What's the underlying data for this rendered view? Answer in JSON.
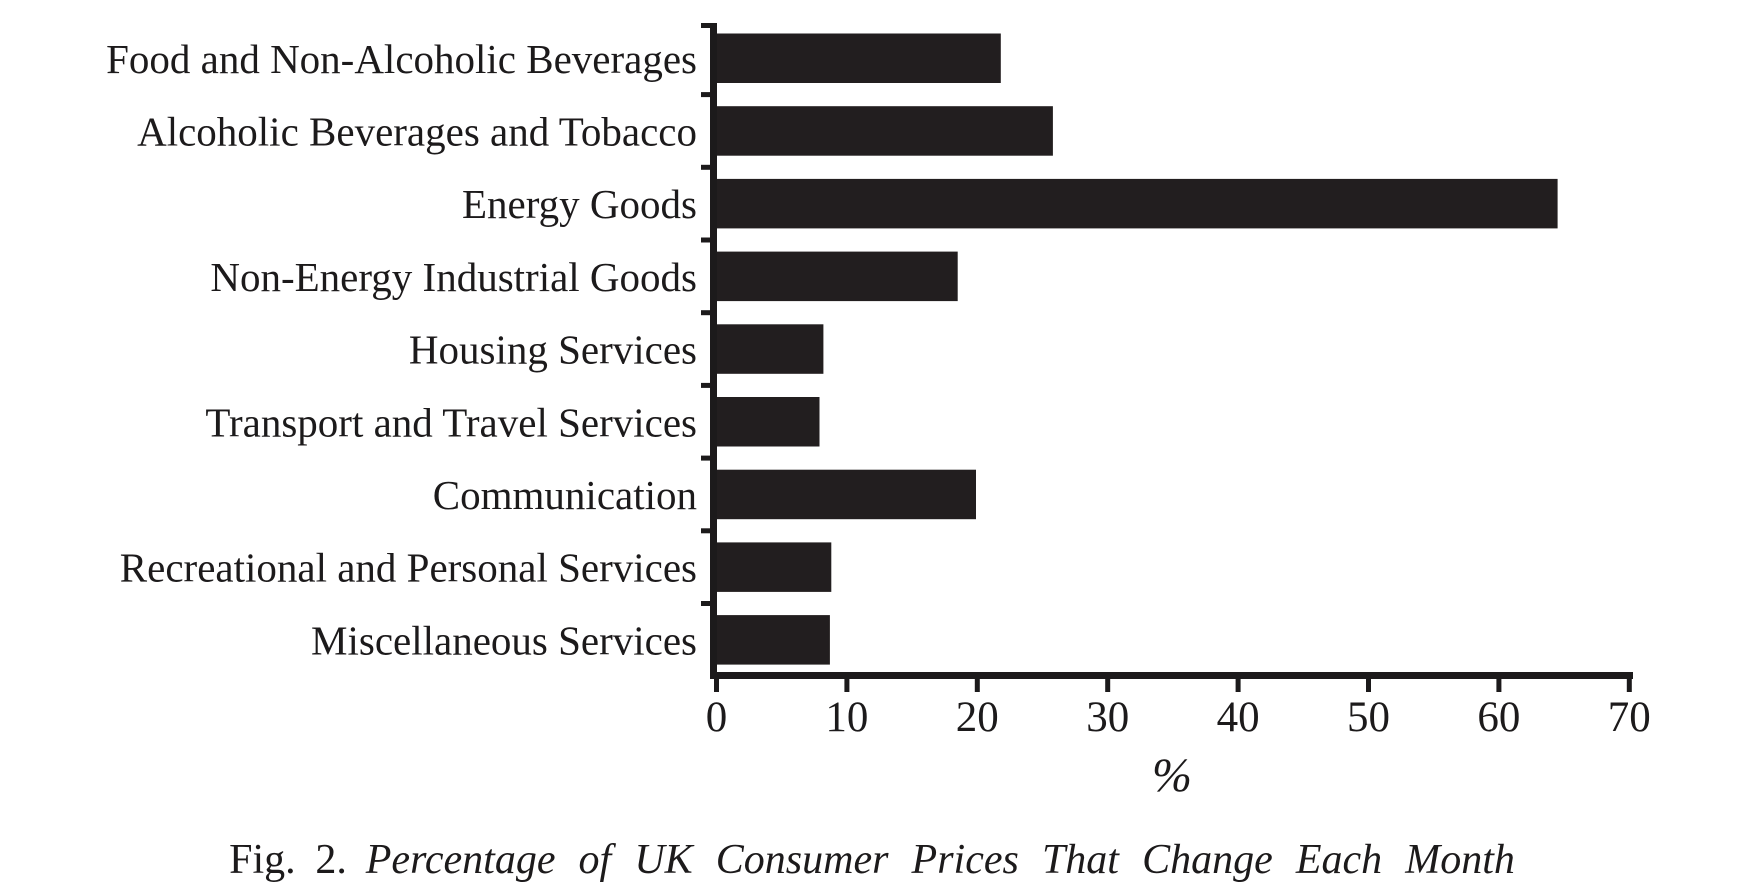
{
  "figure": {
    "caption_prefix": "Fig. 2.",
    "caption_title": "Percentage of UK Consumer Prices That Change Each Month"
  },
  "chart_data": {
    "type": "bar",
    "orientation": "horizontal",
    "title": "",
    "xlabel": "%",
    "ylabel": "",
    "xlim": [
      0,
      70
    ],
    "xticks": [
      0,
      10,
      20,
      30,
      40,
      50,
      60,
      70
    ],
    "grid": false,
    "legend": "none",
    "bar_color": "#221e1f",
    "axis_color": "#1c1a1b",
    "categories": [
      "Food and Non-Alcoholic Beverages",
      "Alcoholic Beverages and Tobacco",
      "Energy Goods",
      "Non-Energy Industrial Goods",
      "Housing Services",
      "Transport and Travel Services",
      "Communication",
      "Recreational and Personal Services",
      "Miscellaneous Services"
    ],
    "values": [
      21.8,
      25.8,
      64.5,
      18.5,
      8.2,
      7.9,
      19.9,
      8.8,
      8.7
    ]
  }
}
